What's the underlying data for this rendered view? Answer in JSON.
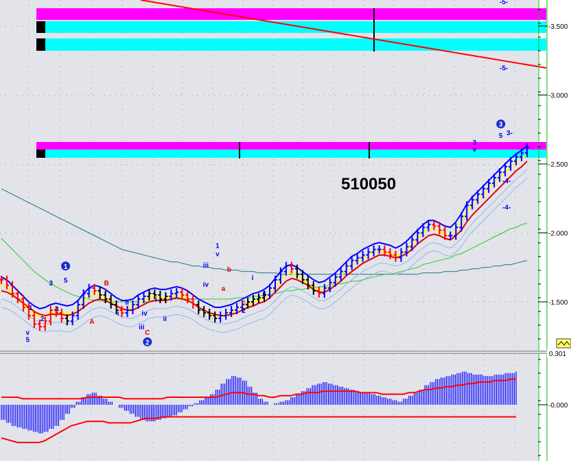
{
  "chart_data": {
    "type": "line",
    "title": "510050",
    "colors": {
      "background": "#e3e3ea",
      "magenta": "#ff00ff",
      "cyan": "#00ffff",
      "up_bar": "#0000ff",
      "down_bar": "#ff0000",
      "neutral_bar": "#000000",
      "yellow_ma": "#ffff00",
      "red_ma": "#e00000",
      "blue_ma": "#0000ff",
      "light_blue_ma": "#88bbee",
      "green_ma": "#22cc22",
      "teal_ma": "#117777",
      "macd_hist": "#0000ff",
      "macd_line": "#ff0000",
      "trendline": "#ff0000",
      "guide_line": "#00bb00"
    },
    "price_axis": {
      "ylim": [
        1.2,
        3.7
      ],
      "ticks": [
        "-3.500",
        "-3.000",
        "-2.500",
        "-2.000",
        "-1.500"
      ],
      "tick_values": [
        3.5,
        3.0,
        2.5,
        2.0,
        1.5
      ]
    },
    "indicator_axis": {
      "ylim": [
        -0.35,
        0.25
      ],
      "ticks": [
        "-0.000"
      ],
      "tick_values": [
        0.0
      ],
      "top_label": "0.301"
    },
    "price": {
      "bars": [
        1.66,
        1.62,
        1.56,
        1.52,
        1.46,
        1.4,
        1.34,
        1.32,
        1.36,
        1.44,
        1.42,
        1.38,
        1.36,
        1.4,
        1.48,
        1.56,
        1.6,
        1.58,
        1.55,
        1.52,
        1.48,
        1.44,
        1.42,
        1.44,
        1.48,
        1.52,
        1.54,
        1.56,
        1.55,
        1.52,
        1.54,
        1.56,
        1.57,
        1.55,
        1.52,
        1.48,
        1.44,
        1.42,
        1.4,
        1.38,
        1.4,
        1.42,
        1.44,
        1.46,
        1.48,
        1.5,
        1.52,
        1.53,
        1.55,
        1.6,
        1.66,
        1.72,
        1.76,
        1.74,
        1.7,
        1.66,
        1.62,
        1.58,
        1.56,
        1.6,
        1.64,
        1.68,
        1.72,
        1.76,
        1.8,
        1.82,
        1.84,
        1.86,
        1.88,
        1.88,
        1.86,
        1.84,
        1.82,
        1.86,
        1.9,
        1.95,
        2.0,
        2.04,
        2.06,
        2.05,
        2.02,
        1.98,
        1.98,
        2.04,
        2.12,
        2.2,
        2.24,
        2.28,
        2.32,
        2.36,
        2.4,
        2.44,
        2.48,
        2.52,
        2.55,
        2.58,
        2.62
      ],
      "ma_yellow": [
        1.62,
        1.6,
        1.56,
        1.52,
        1.48,
        1.44,
        1.41,
        1.39,
        1.4,
        1.42,
        1.43,
        1.42,
        1.41,
        1.42,
        1.45,
        1.5,
        1.54,
        1.56,
        1.55,
        1.53,
        1.5,
        1.47,
        1.45,
        1.45,
        1.46,
        1.49,
        1.51,
        1.53,
        1.54,
        1.53,
        1.53,
        1.54,
        1.55,
        1.54,
        1.52,
        1.49,
        1.46,
        1.44,
        1.42,
        1.4,
        1.4,
        1.41,
        1.42,
        1.44,
        1.46,
        1.48,
        1.5,
        1.51,
        1.53,
        1.56,
        1.61,
        1.66,
        1.7,
        1.71,
        1.69,
        1.66,
        1.63,
        1.6,
        1.58,
        1.59,
        1.62,
        1.65,
        1.69,
        1.73,
        1.77,
        1.79,
        1.82,
        1.84,
        1.86,
        1.87,
        1.86,
        1.85,
        1.83,
        1.85,
        1.88,
        1.92,
        1.96,
        2.0,
        2.03,
        2.03,
        2.01,
        1.99,
        1.98,
        2.02,
        2.08,
        2.15,
        2.2,
        2.24,
        2.28,
        2.32,
        2.36,
        2.4,
        2.44,
        2.48,
        2.51,
        2.54,
        2.57
      ],
      "ma_red": [
        1.58,
        1.57,
        1.55,
        1.52,
        1.49,
        1.46,
        1.43,
        1.41,
        1.4,
        1.41,
        1.41,
        1.41,
        1.4,
        1.41,
        1.43,
        1.46,
        1.49,
        1.51,
        1.52,
        1.51,
        1.49,
        1.47,
        1.45,
        1.44,
        1.44,
        1.46,
        1.48,
        1.5,
        1.51,
        1.51,
        1.51,
        1.52,
        1.53,
        1.52,
        1.51,
        1.49,
        1.46,
        1.44,
        1.42,
        1.41,
        1.4,
        1.4,
        1.41,
        1.42,
        1.44,
        1.46,
        1.47,
        1.49,
        1.5,
        1.53,
        1.57,
        1.61,
        1.65,
        1.67,
        1.66,
        1.64,
        1.62,
        1.59,
        1.57,
        1.57,
        1.59,
        1.62,
        1.65,
        1.69,
        1.72,
        1.75,
        1.78,
        1.8,
        1.82,
        1.84,
        1.84,
        1.83,
        1.82,
        1.83,
        1.85,
        1.88,
        1.92,
        1.95,
        1.98,
        1.99,
        1.98,
        1.96,
        1.95,
        1.98,
        2.02,
        2.08,
        2.13,
        2.17,
        2.21,
        2.25,
        2.29,
        2.33,
        2.37,
        2.41,
        2.45,
        2.48,
        2.52
      ],
      "ma_green": [
        1.96,
        1.92,
        1.88,
        1.84,
        1.8,
        1.76,
        1.72,
        1.69,
        1.66,
        1.63,
        1.61,
        1.59,
        1.57,
        1.55,
        1.54,
        1.53,
        1.52,
        1.51,
        1.51,
        1.5,
        1.5,
        1.5,
        1.5,
        1.5,
        1.5,
        1.5,
        1.5,
        1.5,
        1.51,
        1.51,
        1.51,
        1.52,
        1.52,
        1.52,
        1.52,
        1.52,
        1.52,
        1.52,
        1.52,
        1.52,
        1.52,
        1.52,
        1.52,
        1.53,
        1.53,
        1.53,
        1.54,
        1.54,
        1.55,
        1.55,
        1.56,
        1.57,
        1.58,
        1.58,
        1.59,
        1.59,
        1.6,
        1.6,
        1.61,
        1.61,
        1.62,
        1.63,
        1.63,
        1.64,
        1.65,
        1.65,
        1.66,
        1.67,
        1.68,
        1.69,
        1.7,
        1.7,
        1.71,
        1.72,
        1.73,
        1.74,
        1.75,
        1.77,
        1.78,
        1.79,
        1.8,
        1.81,
        1.82,
        1.84,
        1.85,
        1.87,
        1.89,
        1.91,
        1.93,
        1.95,
        1.97,
        1.99,
        2.01,
        2.03,
        2.04,
        2.06,
        2.07
      ],
      "ma_teal": [
        2.32,
        2.3,
        2.28,
        2.26,
        2.24,
        2.22,
        2.2,
        2.18,
        2.16,
        2.14,
        2.12,
        2.1,
        2.08,
        2.06,
        2.04,
        2.02,
        2.0,
        1.98,
        1.96,
        1.94,
        1.92,
        1.9,
        1.88,
        1.87,
        1.86,
        1.85,
        1.84,
        1.83,
        1.82,
        1.81,
        1.8,
        1.79,
        1.79,
        1.78,
        1.77,
        1.76,
        1.76,
        1.75,
        1.75,
        1.74,
        1.74,
        1.73,
        1.73,
        1.73,
        1.72,
        1.72,
        1.72,
        1.71,
        1.71,
        1.71,
        1.71,
        1.7,
        1.7,
        1.7,
        1.7,
        1.7,
        1.7,
        1.7,
        1.7,
        1.7,
        1.7,
        1.7,
        1.7,
        1.7,
        1.7,
        1.7,
        1.7,
        1.7,
        1.7,
        1.7,
        1.7,
        1.7,
        1.7,
        1.7,
        1.7,
        1.7,
        1.7,
        1.71,
        1.71,
        1.71,
        1.71,
        1.72,
        1.72,
        1.72,
        1.73,
        1.73,
        1.74,
        1.74,
        1.75,
        1.75,
        1.76,
        1.76,
        1.77,
        1.77,
        1.78,
        1.79,
        1.8
      ]
    },
    "macd": {
      "histogram": [
        -0.1,
        -0.12,
        -0.14,
        -0.15,
        -0.16,
        -0.17,
        -0.18,
        -0.19,
        -0.18,
        -0.16,
        -0.14,
        -0.1,
        -0.06,
        -0.02,
        0.02,
        0.05,
        0.07,
        0.08,
        0.06,
        0.04,
        0.02,
        0.0,
        -0.02,
        -0.04,
        -0.06,
        -0.08,
        -0.1,
        -0.11,
        -0.11,
        -0.1,
        -0.09,
        -0.08,
        -0.07,
        -0.05,
        -0.03,
        -0.01,
        0.01,
        0.03,
        0.05,
        0.07,
        0.1,
        0.14,
        0.17,
        0.19,
        0.18,
        0.16,
        0.12,
        0.08,
        0.04,
        0.02,
        0.0,
        0.01,
        0.02,
        0.03,
        0.05,
        0.07,
        0.09,
        0.11,
        0.13,
        0.14,
        0.15,
        0.14,
        0.13,
        0.12,
        0.11,
        0.1,
        0.09,
        0.08,
        0.08,
        0.07,
        0.06,
        0.05,
        0.04,
        0.03,
        0.02,
        0.04,
        0.06,
        0.08,
        0.1,
        0.13,
        0.15,
        0.17,
        0.18,
        0.19,
        0.2,
        0.21,
        0.22,
        0.21,
        0.2,
        0.2,
        0.19,
        0.19,
        0.2,
        0.2,
        0.21,
        0.21,
        0.22
      ],
      "signal": [
        0.05,
        0.05,
        0.05,
        0.05,
        0.04,
        0.04,
        0.04,
        0.04,
        0.04,
        0.04,
        0.04,
        0.04,
        0.04,
        0.04,
        0.04,
        0.04,
        0.05,
        0.05,
        0.05,
        0.05,
        0.05,
        0.05,
        0.05,
        0.04,
        0.04,
        0.04,
        0.04,
        0.04,
        0.04,
        0.04,
        0.04,
        0.05,
        0.05,
        0.05,
        0.05,
        0.05,
        0.05,
        0.05,
        0.05,
        0.05,
        0.05,
        0.06,
        0.07,
        0.08,
        0.08,
        0.08,
        0.07,
        0.07,
        0.06,
        0.06,
        0.05,
        0.05,
        0.06,
        0.06,
        0.06,
        0.07,
        0.07,
        0.08,
        0.08,
        0.08,
        0.09,
        0.09,
        0.09,
        0.09,
        0.09,
        0.09,
        0.09,
        0.08,
        0.08,
        0.08,
        0.08,
        0.07,
        0.07,
        0.07,
        0.07,
        0.07,
        0.08,
        0.08,
        0.09,
        0.1,
        0.1,
        0.11,
        0.11,
        0.12,
        0.12,
        0.13,
        0.13,
        0.14,
        0.14,
        0.15,
        0.15,
        0.15,
        0.16,
        0.16,
        0.16,
        0.17,
        0.17
      ],
      "lower_line": [
        -0.22,
        -0.23,
        -0.24,
        -0.25,
        -0.25,
        -0.25,
        -0.25,
        -0.25,
        -0.24,
        -0.22,
        -0.2,
        -0.18,
        -0.16,
        -0.14,
        -0.13,
        -0.12,
        -0.11,
        -0.11,
        -0.11,
        -0.11,
        -0.12,
        -0.12,
        -0.12,
        -0.12,
        -0.12,
        -0.11,
        -0.1,
        -0.09,
        -0.09,
        -0.09,
        -0.08,
        -0.08,
        -0.08,
        -0.08,
        -0.08,
        -0.08,
        -0.08,
        -0.08,
        -0.08,
        -0.08,
        -0.08,
        -0.08,
        -0.08,
        -0.08,
        -0.08,
        -0.08,
        -0.08,
        -0.08,
        -0.08,
        -0.08,
        -0.08,
        -0.08,
        -0.08,
        -0.08,
        -0.08,
        -0.08,
        -0.08,
        -0.08,
        -0.08,
        -0.08,
        -0.08,
        -0.08,
        -0.08,
        -0.08,
        -0.08,
        -0.08,
        -0.08,
        -0.08,
        -0.08,
        -0.08,
        -0.08,
        -0.08,
        -0.08,
        -0.08,
        -0.08,
        -0.08,
        -0.08,
        -0.08,
        -0.08,
        -0.08,
        -0.08,
        -0.08,
        -0.08,
        -0.08,
        -0.08,
        -0.08,
        -0.08,
        -0.08,
        -0.08,
        -0.08,
        -0.08,
        -0.08,
        -0.08,
        -0.08,
        -0.08,
        -0.08,
        -0.08
      ]
    },
    "wave_labels": [
      {
        "text": "1",
        "bar": 10,
        "price": 1.44,
        "color": "#0000ee",
        "circled": false
      },
      {
        "text": "2",
        "bar": 14,
        "price": 1.36,
        "color": "#0000ee",
        "circled": false
      },
      {
        "text": "3",
        "bar": 17,
        "price": 1.62,
        "color": "#0000ee",
        "circled": false
      },
      {
        "text": "4",
        "bar": 19,
        "price": 1.43,
        "color": "#0000ee",
        "circled": false
      },
      {
        "text": "5",
        "bar": 22,
        "price": 1.64,
        "color": "#0000ee",
        "circled": false
      },
      {
        "text": "1",
        "bar": 22,
        "price": 1.74,
        "color": "#0000ee",
        "circled": true
      },
      {
        "text": "v",
        "bar": 9,
        "price": 1.26,
        "color": "#0000ee",
        "circled": false
      },
      {
        "text": "5",
        "bar": 9,
        "price": 1.21,
        "color": "#0000ee",
        "circled": false
      },
      {
        "text": "A",
        "bar": 31,
        "price": 1.34,
        "color": "#dd0000",
        "circled": false
      },
      {
        "text": "B",
        "bar": 36,
        "price": 1.62,
        "color": "#dd0000",
        "circled": false
      },
      {
        "text": "i",
        "bar": 40,
        "price": 1.4,
        "color": "#0000ee",
        "circled": false
      },
      {
        "text": "ii",
        "bar": 43,
        "price": 1.48,
        "color": "#0000ee",
        "circled": false
      },
      {
        "text": "iii",
        "bar": 48,
        "price": 1.3,
        "color": "#0000ee",
        "circled": false
      },
      {
        "text": "iv",
        "bar": 49,
        "price": 1.4,
        "color": "#0000ee",
        "circled": false
      },
      {
        "text": "C",
        "bar": 50,
        "price": 1.26,
        "color": "#dd0000",
        "circled": false
      },
      {
        "text": "2",
        "bar": 50,
        "price": 1.19,
        "color": "#0000ee",
        "circled": true
      },
      {
        "text": "i",
        "bar": 53,
        "price": 1.5,
        "color": "#0000ee",
        "circled": false
      },
      {
        "text": "ii",
        "bar": 56,
        "price": 1.36,
        "color": "#0000ee",
        "circled": false
      },
      {
        "text": "iii",
        "bar": 70,
        "price": 1.75,
        "color": "#0000ee",
        "circled": false
      },
      {
        "text": "iv",
        "bar": 70,
        "price": 1.61,
        "color": "#0000ee",
        "circled": false
      },
      {
        "text": "1",
        "bar": 74,
        "price": 1.89,
        "color": "#0000ee",
        "circled": false
      },
      {
        "text": "v",
        "bar": 74,
        "price": 1.83,
        "color": "#0000ee",
        "circled": false
      },
      {
        "text": "a",
        "bar": 76,
        "price": 1.58,
        "color": "#dd0000",
        "circled": false
      },
      {
        "text": "b",
        "bar": 78,
        "price": 1.72,
        "color": "#dd0000",
        "circled": false
      },
      {
        "text": "c",
        "bar": 83,
        "price": 1.48,
        "color": "#dd0000",
        "circled": false
      },
      {
        "text": "2",
        "bar": 83,
        "price": 1.42,
        "color": "#0000ee",
        "circled": false
      },
      {
        "text": "i",
        "bar": 86,
        "price": 1.66,
        "color": "#0000ee",
        "circled": false
      },
      {
        "text": "ii",
        "bar": 90,
        "price": 1.54,
        "color": "#0000ee",
        "circled": false
      },
      {
        "text": "3",
        "bar": 162,
        "price": 2.64,
        "color": "#0000ee",
        "circled": false
      },
      {
        "text": "v",
        "bar": 162,
        "price": 2.59,
        "color": "#0000ee",
        "circled": false
      },
      {
        "text": "5",
        "bar": 171,
        "price": 2.69,
        "color": "#0000ee",
        "circled": false
      },
      {
        "text": "3",
        "bar": 171,
        "price": 2.77,
        "color": "#0000ee",
        "circled": true
      },
      {
        "text": "3-",
        "bar": 174,
        "price": 2.71,
        "color": "#0000ee",
        "circled": false
      },
      {
        "text": "-4-",
        "bar": 173,
        "price": 2.36,
        "color": "#0000ee",
        "circled": false
      },
      {
        "text": "-4-",
        "bar": 173,
        "price": 2.17,
        "color": "#0000ee",
        "circled": false
      },
      {
        "text": "-5-",
        "bar": 172,
        "price": 3.66,
        "color": "#0000ee",
        "circled": false
      },
      {
        "text": "-5-",
        "bar": 172,
        "price": 3.18,
        "color": "#0000ee",
        "circled": false
      }
    ],
    "annotation": "510050"
  }
}
